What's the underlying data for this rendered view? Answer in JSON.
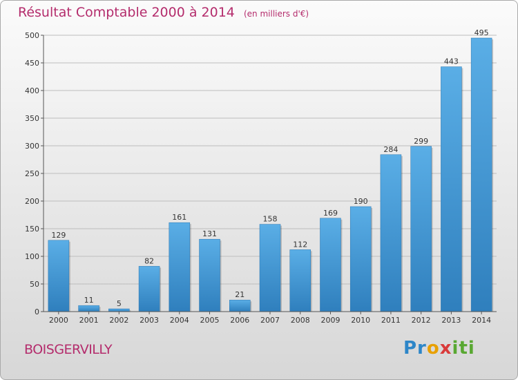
{
  "chart_data": {
    "type": "bar",
    "title": "Résultat Comptable 2000 à 2014",
    "subtitle": "(en milliers d'€)",
    "categories": [
      "2000",
      "2001",
      "2002",
      "2003",
      "2004",
      "2005",
      "2006",
      "2007",
      "2008",
      "2009",
      "2010",
      "2011",
      "2012",
      "2013",
      "2014"
    ],
    "values": [
      129,
      11,
      5,
      82,
      161,
      131,
      21,
      158,
      112,
      169,
      190,
      284,
      299,
      443,
      495
    ],
    "data_labels": [
      "129",
      "11",
      "5",
      "82",
      "161",
      "131",
      "21",
      "158",
      "112",
      "169",
      "190",
      "284",
      "299",
      "443",
      "495"
    ],
    "y_ticks": [
      "0",
      "50",
      "100",
      "150",
      "200",
      "250",
      "300",
      "350",
      "400",
      "450",
      "500"
    ],
    "ylim": [
      0,
      500
    ],
    "grid": true,
    "bar_color": "#4d9fdc"
  },
  "footer": {
    "place": "BOISGERVILLY",
    "logo": "Proxiti"
  }
}
